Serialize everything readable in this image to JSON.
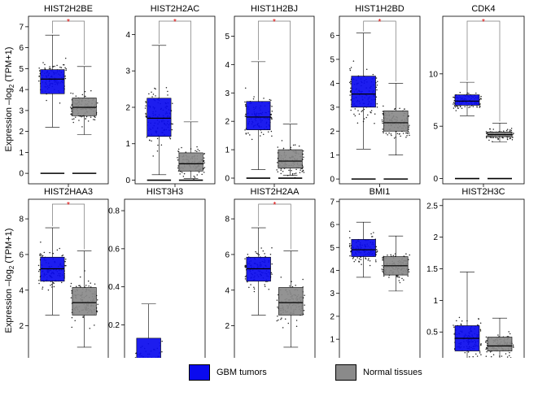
{
  "figure": {
    "ylabel_prefix": "Expression –log",
    "ylabel_sub": "2",
    "ylabel_suffix": " (TPM+1)",
    "significance_mark": "*"
  },
  "legend": {
    "tumor": {
      "label": "GBM tumors",
      "color": "#0a0aee"
    },
    "normal": {
      "label": "Normal tissues",
      "color": "#8a8a8a"
    }
  },
  "chart_data": [
    {
      "type": "box",
      "title": "HIST2H2BE",
      "ylim": [
        -0.5,
        7.5
      ],
      "yticks": [
        0,
        1,
        2,
        3,
        4,
        5,
        6,
        7
      ],
      "significant": true,
      "series": [
        {
          "name": "GBM tumors",
          "min": 2.2,
          "q1": 3.8,
          "median": 4.5,
          "q3": 4.95,
          "max": 6.6,
          "zero": true
        },
        {
          "name": "Normal tissues",
          "min": 1.85,
          "q1": 2.75,
          "median": 3.15,
          "q3": 3.6,
          "max": 5.1,
          "zero": true
        }
      ]
    },
    {
      "type": "box",
      "title": "HIST2H2AC",
      "ylim": [
        -0.1,
        4.5
      ],
      "yticks": [
        0,
        1,
        2,
        3,
        4
      ],
      "significant": true,
      "series": [
        {
          "name": "GBM tumors",
          "min": 0.15,
          "q1": 1.2,
          "median": 1.7,
          "q3": 2.25,
          "max": 3.7,
          "zero": true
        },
        {
          "name": "Normal tissues",
          "min": 0.05,
          "q1": 0.25,
          "median": 0.45,
          "q3": 0.75,
          "max": 1.6,
          "zero": true
        }
      ]
    },
    {
      "type": "box",
      "title": "HIST1H2BJ",
      "ylim": [
        -0.2,
        5.7
      ],
      "yticks": [
        0,
        1,
        2,
        3,
        4,
        5
      ],
      "significant": true,
      "series": [
        {
          "name": "GBM tumors",
          "min": 0.3,
          "q1": 1.7,
          "median": 2.15,
          "q3": 2.7,
          "max": 4.1,
          "zero": true
        },
        {
          "name": "Normal tissues",
          "min": 0.1,
          "q1": 0.35,
          "median": 0.6,
          "q3": 1.0,
          "max": 1.9,
          "zero": true
        }
      ]
    },
    {
      "type": "box",
      "title": "HIST1H2BD",
      "ylim": [
        -0.2,
        6.8
      ],
      "yticks": [
        0,
        1,
        2,
        3,
        4,
        5,
        6
      ],
      "significant": true,
      "series": [
        {
          "name": "GBM tumors",
          "min": 1.25,
          "q1": 3.0,
          "median": 3.55,
          "q3": 4.3,
          "max": 6.1,
          "zero": true
        },
        {
          "name": "Normal tissues",
          "min": 1.0,
          "q1": 2.0,
          "median": 2.35,
          "q3": 2.85,
          "max": 4.0,
          "zero": true
        }
      ]
    },
    {
      "type": "box",
      "title": "CDK4",
      "ylim": [
        -0.5,
        15.5
      ],
      "yticks": [
        0,
        5,
        10
      ],
      "significant": true,
      "series": [
        {
          "name": "GBM tumors",
          "min": 6.0,
          "q1": 7.0,
          "median": 7.4,
          "q3": 8.0,
          "max": 9.2,
          "zero": true
        },
        {
          "name": "Normal tissues",
          "min": 3.5,
          "q1": 4.0,
          "median": 4.2,
          "q3": 4.45,
          "max": 5.3,
          "zero": true
        }
      ]
    },
    {
      "type": "box",
      "title": "HIST2HAA3",
      "ylim": [
        -0.3,
        9.1
      ],
      "yticks": [
        0,
        2,
        4,
        6,
        8
      ],
      "significant": true,
      "series": [
        {
          "name": "GBM tumors",
          "min": 2.6,
          "q1": 4.5,
          "median": 5.2,
          "q3": 5.85,
          "max": 7.5,
          "zero": true
        },
        {
          "name": "Normal tissues",
          "min": 0.8,
          "q1": 2.6,
          "median": 3.3,
          "q3": 4.15,
          "max": 6.2,
          "zero": true
        }
      ]
    },
    {
      "type": "box",
      "title": "HIST3H3",
      "ylim": [
        -0.02,
        0.86
      ],
      "yticks": [
        0.0,
        0.2,
        0.4,
        0.6,
        0.8
      ],
      "significant": false,
      "series": [
        {
          "name": "GBM tumors",
          "min": 0.0,
          "q1": 0.0,
          "median": 0.0,
          "q3": 0.13,
          "max": 0.31,
          "zero": true
        },
        {
          "name": "Normal tissues",
          "min": 0.0,
          "q1": 0.0,
          "median": 0.0,
          "q3": 0.0,
          "max": 0.0,
          "zero": true
        }
      ]
    },
    {
      "type": "box",
      "title": "HIST2H2AA",
      "ylim": [
        -0.3,
        9.1
      ],
      "yticks": [
        0,
        2,
        4,
        6,
        8
      ],
      "significant": true,
      "series": [
        {
          "name": "GBM tumors",
          "min": 2.6,
          "q1": 4.5,
          "median": 5.2,
          "q3": 5.85,
          "max": 7.5,
          "zero": true
        },
        {
          "name": "Normal tissues",
          "min": 0.8,
          "q1": 2.6,
          "median": 3.3,
          "q3": 4.15,
          "max": 6.2,
          "zero": true
        }
      ]
    },
    {
      "type": "box",
      "title": "BMI1",
      "ylim": [
        -0.2,
        7.1
      ],
      "yticks": [
        0,
        1,
        2,
        3,
        4,
        5,
        6,
        7
      ],
      "significant": false,
      "series": [
        {
          "name": "GBM tumors",
          "min": 3.7,
          "q1": 4.6,
          "median": 4.9,
          "q3": 5.35,
          "max": 6.1,
          "zero": true
        },
        {
          "name": "Normal tissues",
          "min": 3.1,
          "q1": 3.8,
          "median": 4.2,
          "q3": 4.6,
          "max": 5.5,
          "zero": true
        }
      ]
    },
    {
      "type": "box",
      "title": "HIST2H3C",
      "ylim": [
        -0.05,
        2.6
      ],
      "yticks": [
        0.0,
        0.5,
        1.0,
        1.5,
        2.0,
        2.5
      ],
      "significant": false,
      "series": [
        {
          "name": "GBM tumors",
          "min": 0.0,
          "q1": 0.2,
          "median": 0.4,
          "q3": 0.6,
          "max": 1.45,
          "zero": true
        },
        {
          "name": "Normal tissues",
          "min": 0.05,
          "q1": 0.2,
          "median": 0.28,
          "q3": 0.42,
          "max": 0.72,
          "zero": true
        }
      ]
    }
  ]
}
